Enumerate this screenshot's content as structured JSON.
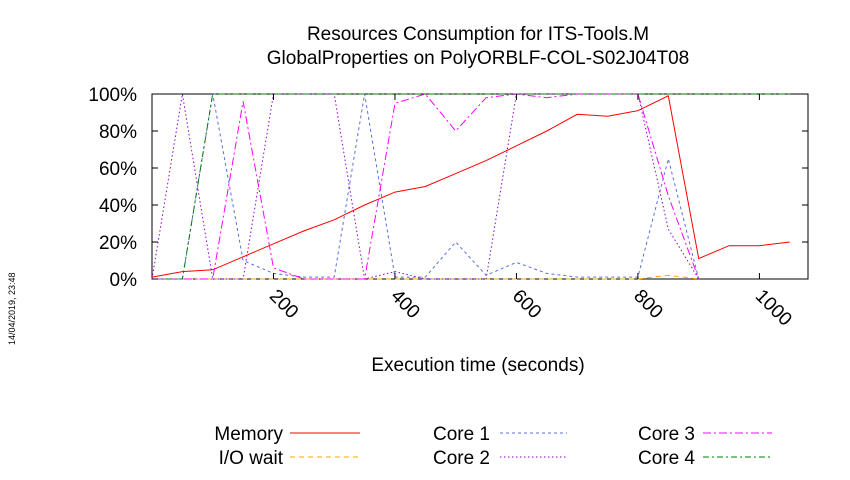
{
  "timestamp": "14/04/2019, 23:48",
  "chart_data": {
    "type": "line",
    "title_lines": [
      "Resources Consumption for ITS-Tools.M",
      "GlobalProperties on PolyORBLF-COL-S02J04T08"
    ],
    "xlabel": "Execution time (seconds)",
    "ylabel": "",
    "xlim": [
      0,
      1080
    ],
    "ylim": [
      0,
      100
    ],
    "x_ticks": [
      200,
      400,
      600,
      800,
      1000
    ],
    "x_tick_labels": [
      "200",
      "400",
      "600",
      "800",
      "1000"
    ],
    "y_ticks": [
      0,
      20,
      40,
      60,
      80,
      100
    ],
    "y_tick_labels": [
      "0%",
      "20%",
      "40%",
      "60%",
      "80%",
      "100%"
    ],
    "grid": false,
    "legend_position": "bottom",
    "series": [
      {
        "name": "Memory",
        "color": "#ff0000",
        "dash": "",
        "points": [
          [
            0,
            1
          ],
          [
            50,
            4
          ],
          [
            100,
            5
          ],
          [
            150,
            12
          ],
          [
            200,
            19
          ],
          [
            250,
            26
          ],
          [
            300,
            32
          ],
          [
            350,
            40
          ],
          [
            400,
            47
          ],
          [
            450,
            50
          ],
          [
            500,
            57
          ],
          [
            550,
            64
          ],
          [
            600,
            72
          ],
          [
            650,
            80
          ],
          [
            700,
            89
          ],
          [
            750,
            88
          ],
          [
            800,
            91
          ],
          [
            850,
            99
          ],
          [
            900,
            11
          ],
          [
            950,
            18
          ],
          [
            1000,
            18
          ],
          [
            1050,
            20
          ]
        ]
      },
      {
        "name": "I/O wait",
        "color": "#ffa500",
        "dash": "5,4",
        "points": [
          [
            0,
            0
          ],
          [
            50,
            0
          ],
          [
            100,
            0
          ],
          [
            150,
            0
          ],
          [
            200,
            0
          ],
          [
            250,
            0
          ],
          [
            300,
            0
          ],
          [
            350,
            0
          ],
          [
            400,
            0
          ],
          [
            450,
            0
          ],
          [
            500,
            0
          ],
          [
            550,
            0
          ],
          [
            600,
            0
          ],
          [
            650,
            0
          ],
          [
            700,
            0
          ],
          [
            750,
            0
          ],
          [
            800,
            0
          ],
          [
            850,
            2
          ],
          [
            900,
            0
          ]
        ]
      },
      {
        "name": "Core 1",
        "color": "#5b6fd6",
        "dash": "3,3",
        "points": [
          [
            0,
            0
          ],
          [
            50,
            0
          ],
          [
            100,
            100
          ],
          [
            150,
            10
          ],
          [
            200,
            3
          ],
          [
            250,
            1
          ],
          [
            300,
            1
          ],
          [
            350,
            100
          ],
          [
            400,
            1
          ],
          [
            450,
            1
          ],
          [
            500,
            20
          ],
          [
            550,
            2
          ],
          [
            600,
            9
          ],
          [
            650,
            3
          ],
          [
            700,
            1
          ],
          [
            750,
            1
          ],
          [
            800,
            1
          ],
          [
            850,
            65
          ],
          [
            900,
            0
          ]
        ]
      },
      {
        "name": "Core 2",
        "color": "#9400d3",
        "dash": "1.5,2.5",
        "points": [
          [
            0,
            0
          ],
          [
            50,
            100
          ],
          [
            100,
            0
          ],
          [
            150,
            0
          ],
          [
            200,
            100
          ],
          [
            250,
            100
          ],
          [
            300,
            100
          ],
          [
            350,
            0
          ],
          [
            400,
            4
          ],
          [
            450,
            0
          ],
          [
            500,
            0
          ],
          [
            550,
            0
          ],
          [
            600,
            100
          ],
          [
            650,
            100
          ],
          [
            700,
            100
          ],
          [
            750,
            100
          ],
          [
            800,
            100
          ],
          [
            850,
            27
          ],
          [
            900,
            0
          ]
        ]
      },
      {
        "name": "Core 3",
        "color": "#ff00ff",
        "dash": "8,3,2,3",
        "points": [
          [
            0,
            0
          ],
          [
            50,
            0
          ],
          [
            100,
            0
          ],
          [
            150,
            96
          ],
          [
            200,
            6
          ],
          [
            250,
            0
          ],
          [
            300,
            0
          ],
          [
            350,
            0
          ],
          [
            400,
            95
          ],
          [
            450,
            100
          ],
          [
            500,
            80
          ],
          [
            550,
            98
          ],
          [
            600,
            100
          ],
          [
            650,
            98
          ],
          [
            700,
            100
          ],
          [
            750,
            100
          ],
          [
            800,
            100
          ],
          [
            850,
            45
          ],
          [
            900,
            0
          ]
        ]
      },
      {
        "name": "Core 4",
        "color": "#008000",
        "dash": "6,3,2,3",
        "points": [
          [
            0,
            0
          ],
          [
            50,
            0
          ],
          [
            100,
            100
          ],
          [
            150,
            100
          ],
          [
            200,
            100
          ],
          [
            250,
            100
          ],
          [
            300,
            100
          ],
          [
            350,
            100
          ],
          [
            400,
            100
          ],
          [
            450,
            100
          ],
          [
            500,
            100
          ],
          [
            550,
            100
          ],
          [
            600,
            100
          ],
          [
            650,
            100
          ],
          [
            700,
            100
          ],
          [
            750,
            100
          ],
          [
            800,
            100
          ],
          [
            850,
            100
          ],
          [
            900,
            100
          ],
          [
            950,
            100
          ],
          [
            1000,
            100
          ],
          [
            1050,
            100
          ]
        ]
      }
    ]
  }
}
